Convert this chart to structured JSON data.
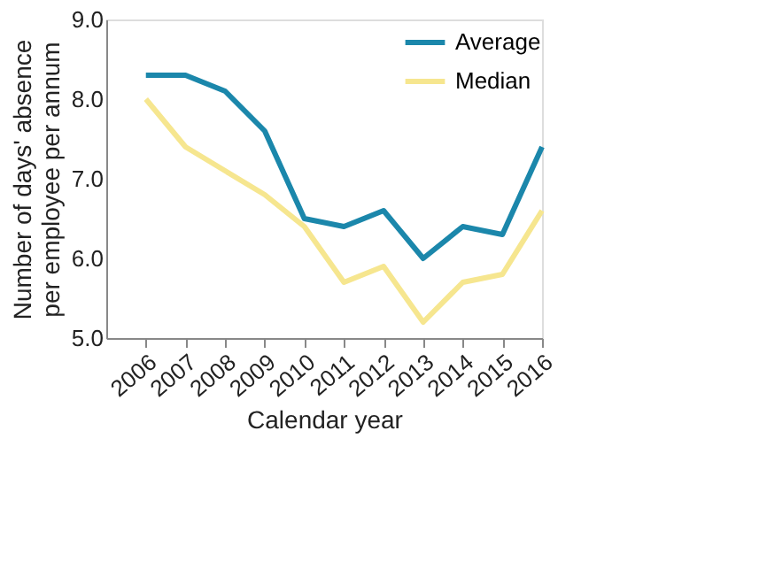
{
  "chart_data": {
    "type": "line",
    "xlabel": "Calendar year",
    "ylabel": "Number of days' absence per employee per annum",
    "categories": [
      "2006",
      "2007",
      "2008",
      "2009",
      "2010",
      "2011",
      "2012",
      "2013",
      "2014",
      "2015",
      "2016"
    ],
    "series": [
      {
        "name": "Average",
        "color": "#1b87ab",
        "values": [
          8.3,
          8.3,
          8.1,
          7.6,
          6.5,
          6.4,
          6.6,
          6.0,
          6.4,
          6.3,
          7.4
        ]
      },
      {
        "name": "Median",
        "color": "#f6e68f",
        "values": [
          8.0,
          7.4,
          7.1,
          6.8,
          6.4,
          5.7,
          5.9,
          5.2,
          5.7,
          5.8,
          6.6
        ]
      }
    ],
    "ylim": [
      5,
      9
    ],
    "yticks": [
      {
        "value": 5,
        "label": "5.0"
      },
      {
        "value": 6,
        "label": "6.0"
      },
      {
        "value": 7,
        "label": "7.0"
      },
      {
        "value": 8,
        "label": "8.0"
      },
      {
        "value": 9,
        "label": "9.0"
      }
    ],
    "grid": false,
    "legend": "top right",
    "marker": "none",
    "line_style": "solid"
  }
}
